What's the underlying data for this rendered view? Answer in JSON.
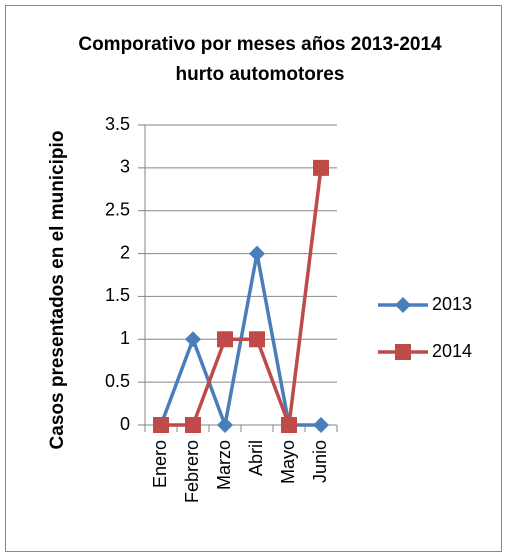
{
  "chart_data": {
    "type": "line",
    "title": "Comporativo por meses años 2013-2014 hurto automotores",
    "y_label": "Casos presentados en el municipio",
    "categories": [
      "Enero",
      "Febrero",
      "Marzo",
      "Abril",
      "Mayo",
      "Junio"
    ],
    "series": [
      {
        "name": "2013",
        "color": "#4a7ebb",
        "marker": "diamond",
        "values": [
          0,
          1,
          0,
          2,
          0,
          0
        ]
      },
      {
        "name": "2014",
        "color": "#be4b48",
        "marker": "square",
        "values": [
          0,
          0,
          1,
          1,
          0,
          3
        ]
      }
    ],
    "ylim": [
      0,
      3.5
    ],
    "yticks": [
      0,
      0.5,
      1,
      1.5,
      2,
      2.5,
      3,
      3.5
    ],
    "grid": true,
    "legend": "right"
  }
}
